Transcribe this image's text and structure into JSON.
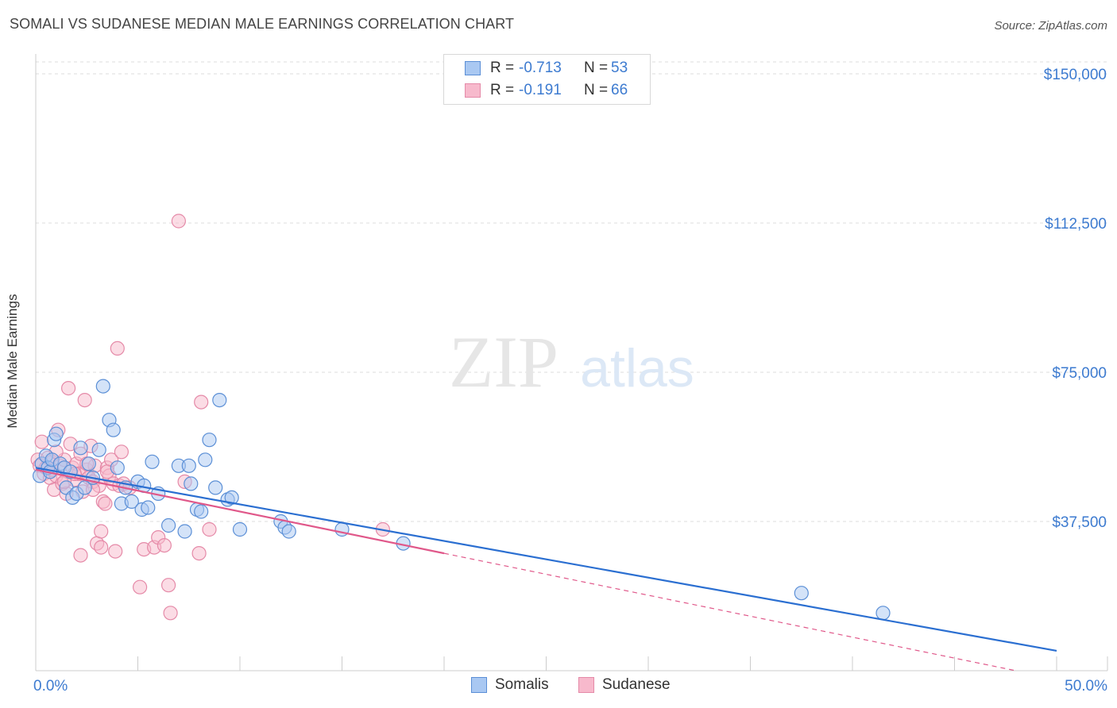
{
  "title": "SOMALI VS SUDANESE MEDIAN MALE EARNINGS CORRELATION CHART",
  "source": "Source: ZipAtlas.com",
  "watermark": {
    "zip": "ZIP",
    "atlas": "atlas"
  },
  "legend": [
    {
      "r_label": "R =",
      "r_value": "-0.713",
      "n_label": "N =",
      "n_value": "53",
      "color": "#a9c8f2",
      "border": "#5b8fd6"
    },
    {
      "r_label": "R =",
      "r_value": "-0.191",
      "n_label": "N =",
      "n_value": "66",
      "color": "#f7b9cc",
      "border": "#e58aa8"
    }
  ],
  "chart_data": {
    "type": "scatter",
    "ylabel": "Median Male Earnings",
    "xlim": [
      0,
      50
    ],
    "ylim": [
      0,
      153000
    ],
    "y_ticks": [
      37500,
      75000,
      112500,
      150000
    ],
    "y_tick_labels": [
      "$37,500",
      "$75,000",
      "$112,500",
      "$150,000"
    ],
    "x_tick_labels": [
      "0.0%",
      "50.0%"
    ],
    "grid": "horizontal dashed",
    "series": [
      {
        "name": "Somalis",
        "color": "#a9c8f2",
        "stroke": "#5b8fd6",
        "trend_color": "#2b6fd1",
        "trend": {
          "x0": 0.0,
          "y0": 51000,
          "x1": 50.0,
          "y1": 5000
        },
        "points": [
          [
            0.2,
            49000
          ],
          [
            0.3,
            52000
          ],
          [
            0.5,
            54000
          ],
          [
            0.6,
            51000
          ],
          [
            0.7,
            50000
          ],
          [
            0.8,
            53000
          ],
          [
            0.9,
            58000
          ],
          [
            1.0,
            59500
          ],
          [
            1.2,
            52000
          ],
          [
            1.4,
            51000
          ],
          [
            1.5,
            46000
          ],
          [
            1.7,
            50000
          ],
          [
            1.8,
            43500
          ],
          [
            2.0,
            44500
          ],
          [
            2.2,
            56000
          ],
          [
            2.4,
            46000
          ],
          [
            2.6,
            52000
          ],
          [
            2.8,
            48500
          ],
          [
            3.1,
            55500
          ],
          [
            3.3,
            71500
          ],
          [
            3.6,
            63000
          ],
          [
            3.8,
            60500
          ],
          [
            4.0,
            51000
          ],
          [
            4.2,
            42000
          ],
          [
            4.4,
            46000
          ],
          [
            4.7,
            42500
          ],
          [
            5.0,
            47500
          ],
          [
            5.2,
            40500
          ],
          [
            5.3,
            46500
          ],
          [
            5.5,
            41000
          ],
          [
            5.7,
            52500
          ],
          [
            6.0,
            44500
          ],
          [
            6.5,
            36500
          ],
          [
            7.0,
            51500
          ],
          [
            7.3,
            35000
          ],
          [
            7.5,
            51500
          ],
          [
            7.6,
            47000
          ],
          [
            7.9,
            40500
          ],
          [
            8.1,
            40000
          ],
          [
            8.3,
            53000
          ],
          [
            8.5,
            58000
          ],
          [
            8.8,
            46000
          ],
          [
            9.0,
            68000
          ],
          [
            9.4,
            43000
          ],
          [
            9.6,
            43500
          ],
          [
            10.0,
            35500
          ],
          [
            12.0,
            37500
          ],
          [
            12.2,
            36000
          ],
          [
            12.4,
            35000
          ],
          [
            15.0,
            35500
          ],
          [
            18.0,
            32000
          ],
          [
            37.5,
            19500
          ],
          [
            41.5,
            14500
          ]
        ]
      },
      {
        "name": "Sudanese",
        "color": "#f7b9cc",
        "stroke": "#e58aa8",
        "trend_color": "#e0588a",
        "trend": {
          "x0": 0.0,
          "y0": 50500,
          "x1": 20.0,
          "y1": 29500
        },
        "trend_dashed": {
          "x0": 20.0,
          "y0": 29500,
          "x1": 48.0,
          "y1": 0
        },
        "points": [
          [
            0.1,
            53000
          ],
          [
            0.2,
            51500
          ],
          [
            0.3,
            57500
          ],
          [
            0.4,
            49500
          ],
          [
            0.5,
            51000
          ],
          [
            0.6,
            53500
          ],
          [
            0.7,
            48500
          ],
          [
            0.8,
            52500
          ],
          [
            0.9,
            45500
          ],
          [
            1.0,
            49000
          ],
          [
            1.1,
            60500
          ],
          [
            1.2,
            51500
          ],
          [
            1.3,
            47000
          ],
          [
            1.4,
            53000
          ],
          [
            1.5,
            44500
          ],
          [
            1.6,
            71000
          ],
          [
            1.7,
            57000
          ],
          [
            1.8,
            51000
          ],
          [
            1.9,
            48000
          ],
          [
            2.0,
            52000
          ],
          [
            2.1,
            49500
          ],
          [
            2.2,
            54500
          ],
          [
            2.3,
            45000
          ],
          [
            2.4,
            68000
          ],
          [
            2.5,
            50500
          ],
          [
            2.6,
            48500
          ],
          [
            2.7,
            56500
          ],
          [
            2.8,
            47500
          ],
          [
            2.9,
            51500
          ],
          [
            3.0,
            32000
          ],
          [
            3.1,
            46500
          ],
          [
            3.2,
            35000
          ],
          [
            3.3,
            42500
          ],
          [
            3.4,
            42000
          ],
          [
            3.5,
            51000
          ],
          [
            3.6,
            49000
          ],
          [
            3.7,
            53000
          ],
          [
            3.8,
            47000
          ],
          [
            3.9,
            30000
          ],
          [
            4.0,
            81000
          ],
          [
            4.1,
            46500
          ],
          [
            4.2,
            55000
          ],
          [
            4.3,
            47000
          ],
          [
            3.2,
            31000
          ],
          [
            5.1,
            21000
          ],
          [
            5.3,
            30500
          ],
          [
            5.8,
            31000
          ],
          [
            6.0,
            33500
          ],
          [
            6.3,
            31500
          ],
          [
            6.5,
            21500
          ],
          [
            6.6,
            14500
          ],
          [
            7.0,
            113000
          ],
          [
            7.3,
            47500
          ],
          [
            8.0,
            29500
          ],
          [
            8.1,
            67500
          ],
          [
            8.5,
            35500
          ],
          [
            2.8,
            45500
          ],
          [
            1.9,
            49500
          ],
          [
            2.5,
            52000
          ],
          [
            3.5,
            50000
          ],
          [
            4.6,
            46000
          ],
          [
            2.2,
            29000
          ],
          [
            1.4,
            47500
          ],
          [
            0.8,
            50500
          ],
          [
            17.0,
            35500
          ],
          [
            1.0,
            55000
          ]
        ]
      }
    ]
  }
}
